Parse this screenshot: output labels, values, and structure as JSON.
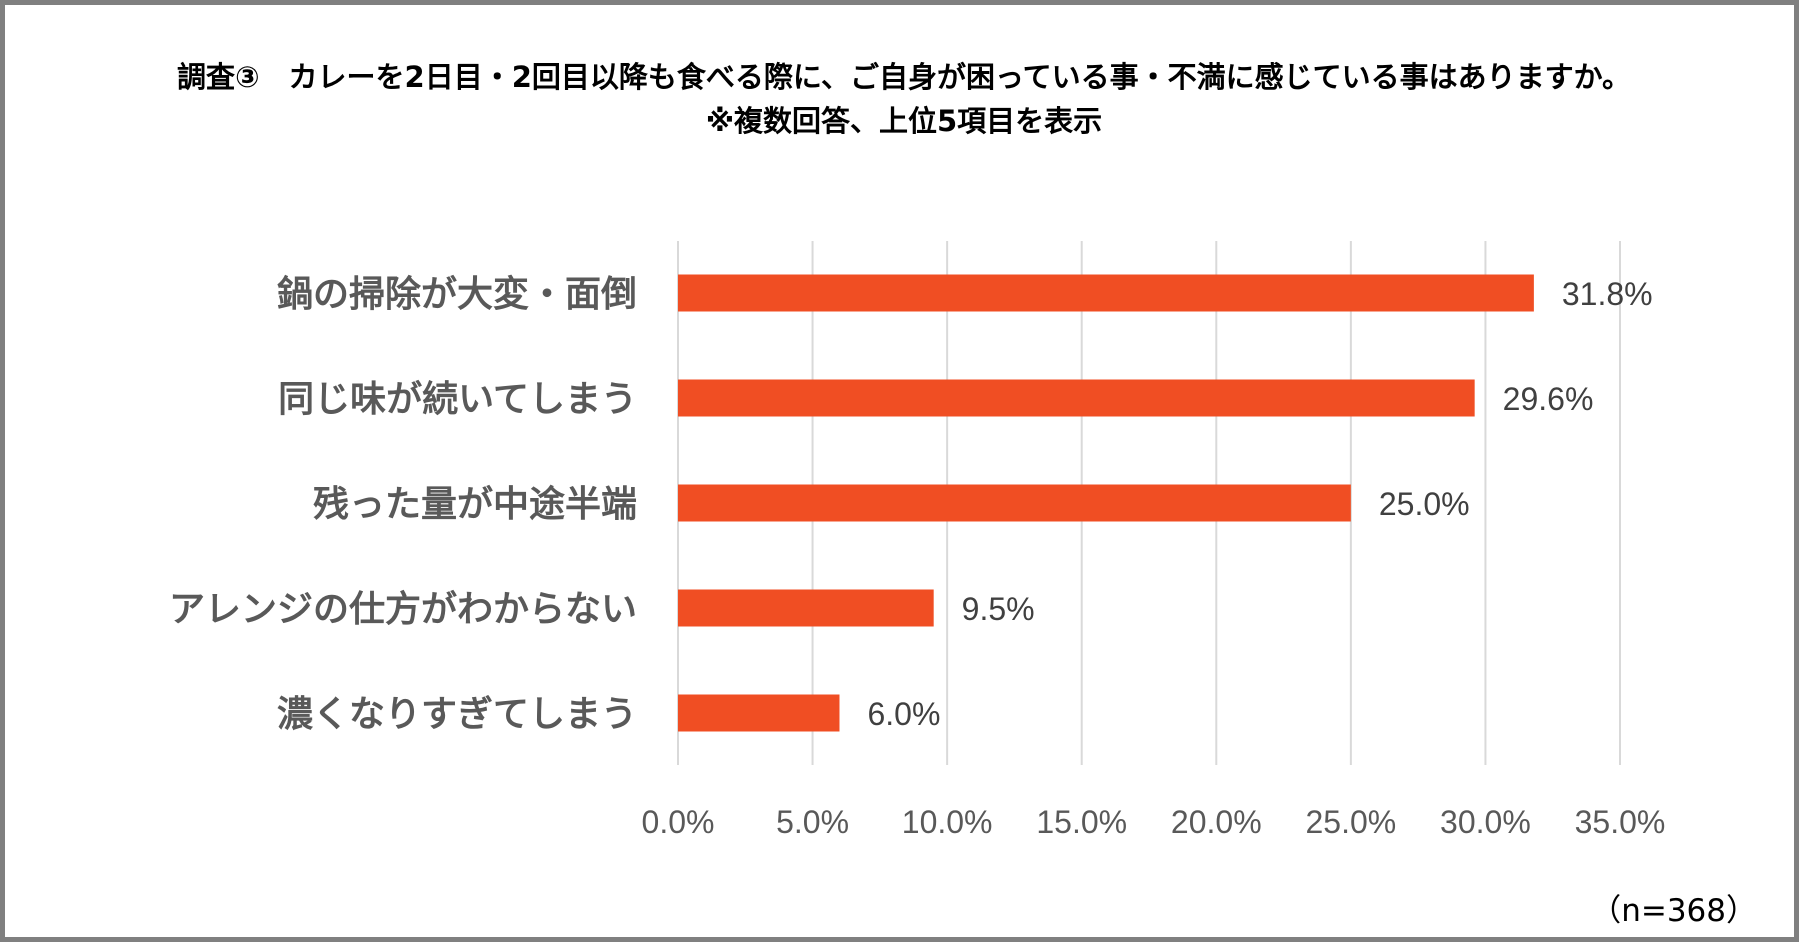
{
  "chart_data": {
    "type": "bar",
    "orientation": "horizontal",
    "title": "調査③　カレーを2日目・2回目以降も食べる際に、ご自身が困っている事・不満に感じている事はありますか。",
    "subtitle": "※複数回答、上位5項目を表示",
    "categories": [
      "鍋の掃除が大変・面倒",
      "同じ味が続いてしまう",
      "残った量が中途半端",
      "アレンジの仕方がわからない",
      "濃くなりすぎてしまう"
    ],
    "values": [
      31.8,
      29.6,
      25.0,
      9.5,
      6.0
    ],
    "value_labels": [
      "31.8%",
      "29.6%",
      "25.0%",
      "9.5%",
      "6.0%"
    ],
    "xlim": [
      0,
      35
    ],
    "x_ticks": [
      0,
      5,
      10,
      15,
      20,
      25,
      30,
      35
    ],
    "x_tick_labels": [
      "0.0%",
      "5.0%",
      "10.0%",
      "15.0%",
      "20.0%",
      "25.0%",
      "30.0%",
      "35.0%"
    ],
    "xlabel": "",
    "ylabel": "",
    "grid": "vertical",
    "legend": "none",
    "note": "（n=368）",
    "bar_color": "#F04E23",
    "grid_color": "#D9D9D9",
    "border_color": "#808080"
  }
}
